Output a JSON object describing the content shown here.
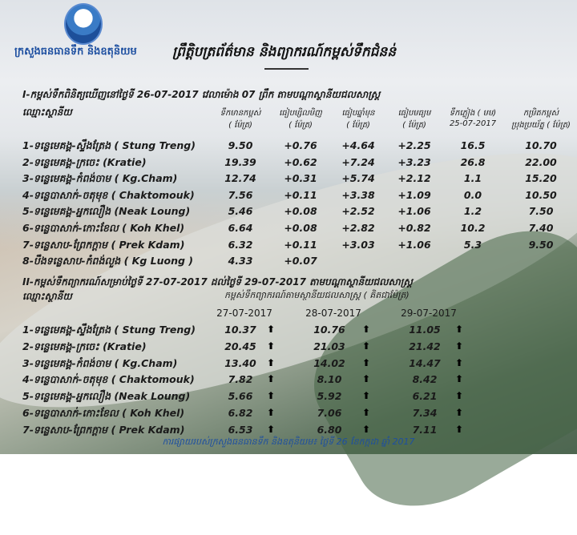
{
  "header": {
    "ministry": "ក្រសួងធនធានទឹក និងឧតុនិយម",
    "title": "ព្រឹត្តិបត្រព័ត៌មាន និងព្យាករណ៍កម្ពស់ទឹកជំនន់"
  },
  "section1": {
    "title": "I-កម្ពស់ទឹកពិនិត្យឃើញនៅថ្ងៃទី 26-07-2017 វេលាម៉ោង 07 ព្រឹក តាមបណ្ដាស្ថានីយជលសាស្ត្រ",
    "station_header": "ឈ្មោះស្ថានីយ",
    "columns": [
      {
        "label": "ទឹកមានកម្ពស់",
        "unit": "( ម៉ែត្រ)"
      },
      {
        "label": "ធៀបម្សិលមិញ",
        "unit": "( ម៉ែត្រ)"
      },
      {
        "label": "ធៀបឆ្នាំមុន",
        "unit": "( ម៉ែត្រ)"
      },
      {
        "label": "ធៀបមធ្យម",
        "unit": "( ម៉ែត្រ)"
      },
      {
        "label": "ទឹកភ្លៀង ( មម)",
        "unit": "25-07-2017"
      },
      {
        "label": "កម្រិតកម្ពស់",
        "unit": "ប្រុងប្រយ័ត្ន ( ម៉ែត្រ)"
      }
    ],
    "rows": [
      {
        "name": "1-ទន្លេមេគង្គ-ស្ទឹងត្រែង ( Stung Treng)",
        "level": "9.50",
        "vs_yesterday": "+0.76",
        "vs_last_year": "+4.64",
        "vs_average": "+2.25",
        "rain": "16.5",
        "alert": "10.70"
      },
      {
        "name": "2-ទន្លេមេគង្គ-ក្រចេះ (Kratie)",
        "level": "19.39",
        "vs_yesterday": "+0.62",
        "vs_last_year": "+7.24",
        "vs_average": "+3.23",
        "rain": "26.8",
        "alert": "22.00"
      },
      {
        "name": "3-ទន្លេមេគង្គ-កំពង់ចាម ( Kg.Cham)",
        "level": "12.74",
        "vs_yesterday": "+0.31",
        "vs_last_year": "+5.74",
        "vs_average": "+2.12",
        "rain": "1.1",
        "alert": "15.20"
      },
      {
        "name": "4-ទន្លេបាសាក់-ចតុមុខ ( Chaktomouk)",
        "level": "7.56",
        "vs_yesterday": "+0.11",
        "vs_last_year": "+3.38",
        "vs_average": "+1.09",
        "rain": "0.0",
        "alert": "10.50"
      },
      {
        "name": "5-ទន្លេមេគង្គ-អ្នកលឿង (Neak Loung)",
        "level": "5.46",
        "vs_yesterday": "+0.08",
        "vs_last_year": "+2.52",
        "vs_average": "+1.06",
        "rain": "1.2",
        "alert": "7.50"
      },
      {
        "name": "6-ទន្លេបាសាក់-កោះខែល ( Koh Khel)",
        "level": "6.64",
        "vs_yesterday": "+0.08",
        "vs_last_year": "+2.82",
        "vs_average": "+0.82",
        "rain": "10.2",
        "alert": "7.40"
      },
      {
        "name": "7-ទន្លេសាប-ព្រែកក្ដាម ( Prek Kdam)",
        "level": "6.32",
        "vs_yesterday": "+0.11",
        "vs_last_year": "+3.03",
        "vs_average": "+1.06",
        "rain": "5.3",
        "alert": "9.50"
      },
      {
        "name": "8-បឹងទន្លេសាប-កំពង់លួង ( Kg Luong )",
        "level": "4.33",
        "vs_yesterday": "+0.07",
        "vs_last_year": "",
        "vs_average": "",
        "rain": "",
        "alert": ""
      }
    ]
  },
  "section2": {
    "title": "II-កម្ពស់ទឹកព្យាករណ៍សម្រាប់ថ្ងៃទី 27-07-2017 ដល់ថ្ងៃទី 29-07-2017 តាមបណ្ដាស្ថានីយជលសាស្ត្រ",
    "station_header": "ឈ្មោះស្ថានីយ",
    "subheader": "កម្ពស់ទឹកព្យាករណ៍តាមស្ថានីយជលសាស្ត្រ ( គិតជាម៉ែត្រ)",
    "dates": [
      "27-07-2017",
      "28-07-2017",
      "29-07-2017"
    ],
    "trend_icon": "arrow-up-icon",
    "rows": [
      {
        "name": "1-ទន្លេមេគង្គ-ស្ទឹងត្រែង ( Stung Treng)",
        "values": [
          "10.37",
          "10.76",
          "11.05"
        ]
      },
      {
        "name": "2-ទន្លេមេគង្គ-ក្រចេះ (Kratie)",
        "values": [
          "20.45",
          "21.03",
          "21.42"
        ]
      },
      {
        "name": "3-ទន្លេមេគង្គ-កំពង់ចាម ( Kg.Cham)",
        "values": [
          "13.40",
          "14.02",
          "14.47"
        ]
      },
      {
        "name": "4-ទន្លេបាសាក់-ចតុមុខ ( Chaktomouk)",
        "values": [
          "7.82",
          "8.10",
          "8.42"
        ]
      },
      {
        "name": "5-ទន្លេមេគង្គ-អ្នកលឿង (Neak Loung)",
        "values": [
          "5.66",
          "5.92",
          "6.21"
        ]
      },
      {
        "name": "6-ទន្លេបាសាក់-កោះខែល ( Koh Khel)",
        "values": [
          "6.82",
          "7.06",
          "7.34"
        ]
      },
      {
        "name": "7-ទន្លេសាប-ព្រែកក្ដាម ( Prek Kdam)",
        "values": [
          "6.53",
          "6.80",
          "7.11"
        ]
      }
    ]
  },
  "footer": "ការផ្សាយរបស់ក្រសួងធនធានទឹក និងឧតុនិយម៖ ថ្ងៃទី 26 ខែកក្កដា ឆ្នាំ 2017",
  "colors": {
    "ministry_blue": "#1d4fa0",
    "text": "#1a1a1a"
  }
}
